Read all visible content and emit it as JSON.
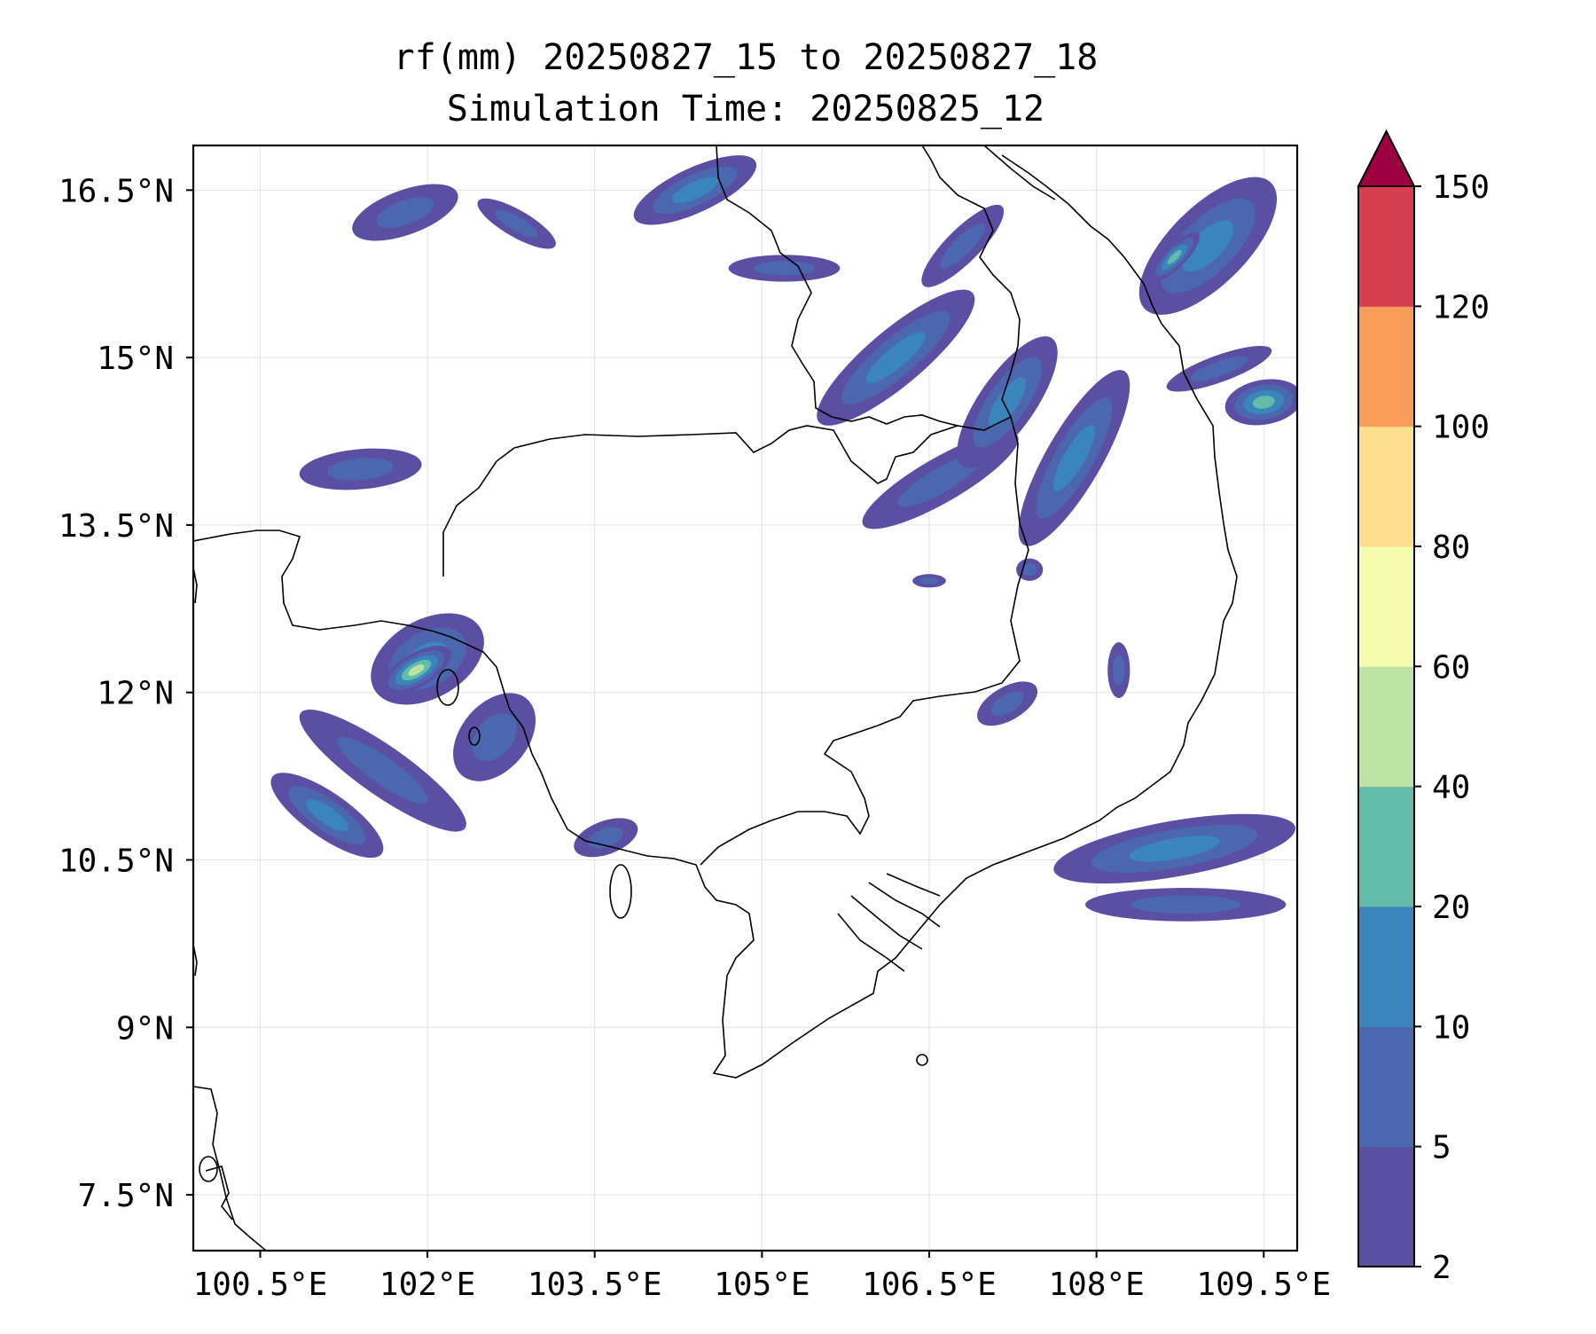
{
  "title": {
    "line1": "rf(mm) 20250827_15 to 20250827_18",
    "line2": "Simulation Time: 20250825_12"
  },
  "map": {
    "lon_range": [
      99.9,
      109.8
    ],
    "lat_range": [
      7.0,
      16.9
    ],
    "lon_ticks": [
      {
        "value": 100.5,
        "label": "100.5°E"
      },
      {
        "value": 102.0,
        "label": "102°E"
      },
      {
        "value": 103.5,
        "label": "103.5°E"
      },
      {
        "value": 105.0,
        "label": "105°E"
      },
      {
        "value": 106.5,
        "label": "106.5°E"
      },
      {
        "value": 108.0,
        "label": "108°E"
      },
      {
        "value": 109.5,
        "label": "109.5°E"
      }
    ],
    "lat_ticks": [
      {
        "value": 7.5,
        "label": "7.5°N"
      },
      {
        "value": 9.0,
        "label": "9°N"
      },
      {
        "value": 10.5,
        "label": "10.5°N"
      },
      {
        "value": 12.0,
        "label": "12°N"
      },
      {
        "value": 13.5,
        "label": "13.5°N"
      },
      {
        "value": 15.0,
        "label": "15°N"
      },
      {
        "value": 16.5,
        "label": "16.5°N"
      }
    ],
    "grid": true,
    "coastline_color": "#000000",
    "rain_cells": [
      {
        "lon": 102.0,
        "lat": 12.3,
        "rx": 0.55,
        "ry": 0.35,
        "rot": -30,
        "level": 2
      },
      {
        "lon": 101.9,
        "lat": 12.2,
        "rx": 0.35,
        "ry": 0.15,
        "rot": -30,
        "level": 4
      },
      {
        "lon": 101.6,
        "lat": 11.3,
        "rx": 0.9,
        "ry": 0.22,
        "rot": 35,
        "level": 1
      },
      {
        "lon": 101.1,
        "lat": 10.9,
        "rx": 0.6,
        "ry": 0.2,
        "rot": 35,
        "level": 2
      },
      {
        "lon": 102.6,
        "lat": 11.6,
        "rx": 0.45,
        "ry": 0.3,
        "rot": -50,
        "level": 1
      },
      {
        "lon": 101.4,
        "lat": 14.0,
        "rx": 0.55,
        "ry": 0.18,
        "rot": -5,
        "level": 1
      },
      {
        "lon": 101.8,
        "lat": 16.3,
        "rx": 0.5,
        "ry": 0.2,
        "rot": -20,
        "level": 1
      },
      {
        "lon": 102.8,
        "lat": 16.2,
        "rx": 0.4,
        "ry": 0.12,
        "rot": 30,
        "level": 1
      },
      {
        "lon": 104.4,
        "lat": 16.5,
        "rx": 0.6,
        "ry": 0.2,
        "rot": -25,
        "level": 2
      },
      {
        "lon": 105.2,
        "lat": 15.8,
        "rx": 0.5,
        "ry": 0.12,
        "rot": 0,
        "level": 1
      },
      {
        "lon": 106.2,
        "lat": 15.0,
        "rx": 0.9,
        "ry": 0.25,
        "rot": -40,
        "level": 2
      },
      {
        "lon": 106.6,
        "lat": 13.9,
        "rx": 0.8,
        "ry": 0.2,
        "rot": -30,
        "level": 1
      },
      {
        "lon": 107.2,
        "lat": 14.6,
        "rx": 0.7,
        "ry": 0.25,
        "rot": -55,
        "level": 2
      },
      {
        "lon": 107.8,
        "lat": 14.1,
        "rx": 0.9,
        "ry": 0.25,
        "rot": -60,
        "level": 2
      },
      {
        "lon": 106.8,
        "lat": 16.0,
        "rx": 0.5,
        "ry": 0.15,
        "rot": -45,
        "level": 1
      },
      {
        "lon": 109.0,
        "lat": 16.0,
        "rx": 0.8,
        "ry": 0.35,
        "rot": -45,
        "level": 2
      },
      {
        "lon": 108.7,
        "lat": 15.9,
        "rx": 0.3,
        "ry": 0.1,
        "rot": -45,
        "level": 3
      },
      {
        "lon": 109.5,
        "lat": 14.6,
        "rx": 0.35,
        "ry": 0.2,
        "rot": -10,
        "level": 3
      },
      {
        "lon": 109.1,
        "lat": 14.9,
        "rx": 0.5,
        "ry": 0.12,
        "rot": -20,
        "level": 1
      },
      {
        "lon": 107.2,
        "lat": 11.9,
        "rx": 0.3,
        "ry": 0.15,
        "rot": -30,
        "level": 1
      },
      {
        "lon": 108.7,
        "lat": 10.6,
        "rx": 1.1,
        "ry": 0.25,
        "rot": -10,
        "level": 2
      },
      {
        "lon": 108.8,
        "lat": 10.1,
        "rx": 0.9,
        "ry": 0.15,
        "rot": 0,
        "level": 1
      },
      {
        "lon": 103.6,
        "lat": 10.7,
        "rx": 0.3,
        "ry": 0.15,
        "rot": -20,
        "level": 1
      },
      {
        "lon": 108.2,
        "lat": 12.2,
        "rx": 0.1,
        "ry": 0.25,
        "rot": 0,
        "level": 1
      },
      {
        "lon": 107.4,
        "lat": 13.1,
        "rx": 0.12,
        "ry": 0.1,
        "rot": 0,
        "level": 1
      },
      {
        "lon": 106.5,
        "lat": 13.0,
        "rx": 0.15,
        "ry": 0.06,
        "rot": 0,
        "level": 1
      }
    ]
  },
  "colorbar": {
    "boundaries": [
      2,
      5,
      10,
      20,
      40,
      60,
      80,
      100,
      120,
      150
    ],
    "tick_labels": [
      "2",
      "5",
      "10",
      "20",
      "40",
      "60",
      "80",
      "100",
      "120",
      "150"
    ],
    "colors": [
      "#5a4fa3",
      "#4b67b0",
      "#3985bc",
      "#62bca8",
      "#bde2a2",
      "#f4fbad",
      "#fcdf8d",
      "#fa9d5a",
      "#d53e4f"
    ],
    "extend_color": "#9e0142",
    "extend": "max"
  }
}
